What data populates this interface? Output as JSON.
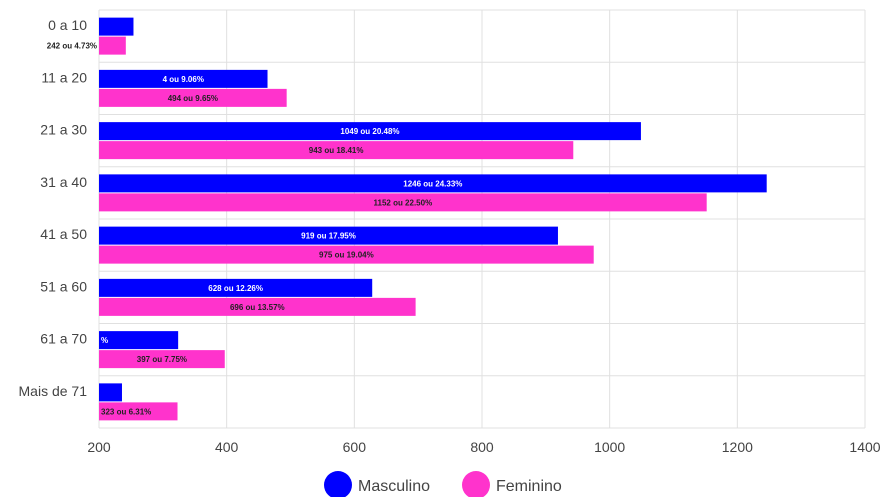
{
  "chart_data": {
    "type": "bar",
    "orientation": "horizontal",
    "title": "",
    "xlabel": "",
    "ylabel": "",
    "categories": [
      "0 a 10",
      "11 a 20",
      "21 a 30",
      "31 a 40",
      "41 a 50",
      "51 a 60",
      "61 a 70",
      "Mais de 71"
    ],
    "xlim": [
      200,
      1400
    ],
    "x_ticks": [
      200,
      400,
      600,
      800,
      1000,
      1200,
      1400
    ],
    "grid": true,
    "legend_position": "bottom",
    "series": [
      {
        "name": "Masculino",
        "color": "#0000ff",
        "label_color": "#ffffff",
        "values": [
          254,
          464,
          1049,
          1246,
          919,
          628,
          324,
          236
        ],
        "labels": [
          "",
          "4 ou 9.06%",
          "1049 ou 20.48%",
          "1246 ou 24.33%",
          "919 ou 17.95%",
          "628 ou 12.26%",
          "%",
          ""
        ]
      },
      {
        "name": "Feminino",
        "color": "#ff33cc",
        "label_color": "#222222",
        "values": [
          242,
          494,
          943,
          1152,
          975,
          696,
          397,
          323
        ],
        "labels": [
          "242 ou 4.73%",
          "494 ou 9.65%",
          "943 ou 18.41%",
          "1152 ou 22.50%",
          "975 ou 19.04%",
          "696 ou 13.57%",
          "397 ou 7.75%",
          "323 ou 6.31%"
        ]
      }
    ]
  }
}
